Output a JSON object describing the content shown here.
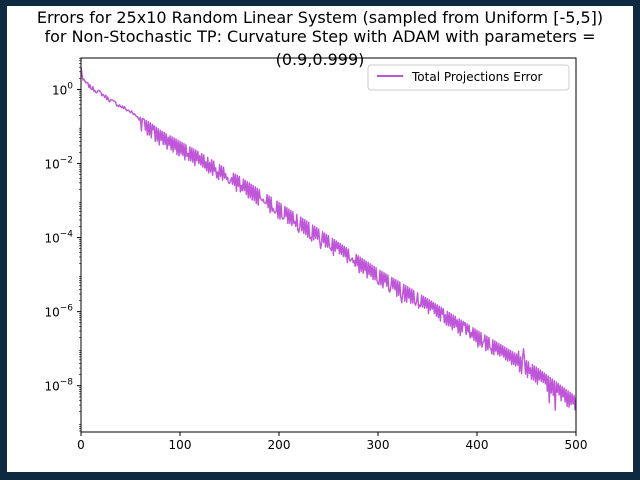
{
  "chart_data": {
    "type": "line",
    "title_lines": [
      "Errors for 25x10 Random Linear System (sampled from Uniform [-5,5])",
      "for Non-Stochastic TP: Curvature Step with ADAM with parameters =",
      "(0.9,0.999)"
    ],
    "xlabel": "",
    "ylabel": "",
    "xlim": [
      0,
      500
    ],
    "ylim_log10": [
      -9.25,
      0.85
    ],
    "y_scale": "log",
    "grid": false,
    "legend_position": "upper-right",
    "x_ticks": [
      0,
      100,
      200,
      300,
      400,
      500
    ],
    "y_ticks": [
      {
        "base": "10",
        "exp": "0",
        "log10": 0
      },
      {
        "base": "10",
        "exp": "−2",
        "log10": -2
      },
      {
        "base": "10",
        "exp": "−4",
        "log10": -4
      },
      {
        "base": "10",
        "exp": "−6",
        "log10": -6
      },
      {
        "base": "10",
        "exp": "−8",
        "log10": -8
      }
    ],
    "series": [
      {
        "name": "Total Projections Error",
        "color": "#bf55d8",
        "trend_x": [
          0,
          2,
          10,
          20,
          30,
          40,
          50,
          60,
          70,
          80,
          100,
          120,
          150,
          160,
          200,
          250,
          300,
          350,
          400,
          440,
          460,
          500
        ],
        "trend_log10": [
          0.6,
          0.25,
          0.05,
          -0.1,
          -0.3,
          -0.45,
          -0.6,
          -0.8,
          -0.95,
          -1.15,
          -1.45,
          -1.75,
          -2.25,
          -2.4,
          -3.1,
          -4.0,
          -4.9,
          -5.7,
          -6.55,
          -7.2,
          -7.55,
          -8.35
        ],
        "dip_x": [
          60,
          70,
          80,
          90,
          100,
          110,
          120,
          130,
          140,
          150,
          160,
          170,
          180,
          190,
          200,
          210,
          215,
          220,
          230,
          240,
          250,
          260,
          265,
          270,
          280,
          285,
          290,
          300,
          310,
          320,
          330,
          340,
          350,
          360,
          370,
          380,
          390,
          400,
          410,
          420,
          430,
          440,
          450,
          460,
          470,
          480,
          490,
          500
        ],
        "dip_log10": [
          -0.9,
          -1.1,
          -1.25,
          -1.4,
          -1.55,
          -1.8,
          -1.95,
          -2.15,
          -2.35,
          -2.55,
          -2.7,
          -2.9,
          -3.05,
          -3.25,
          -3.45,
          -3.65,
          -3.7,
          -3.9,
          -4.0,
          -4.25,
          -4.5,
          -4.3,
          -4.75,
          -4.55,
          -5.0,
          -5.0,
          -5.0,
          -5.3,
          -5.5,
          -5.65,
          -5.95,
          -5.9,
          -6.1,
          -6.05,
          -6.15,
          -6.3,
          -6.6,
          -6.75,
          -6.95,
          -7.15,
          -7.2,
          -7.3,
          -7.0,
          -8.7,
          -8.4,
          -8.7,
          -8.5,
          -8.7
        ]
      }
    ]
  }
}
